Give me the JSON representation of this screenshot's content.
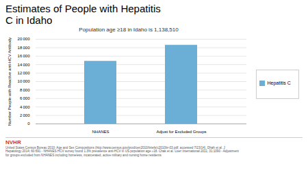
{
  "chart_data": {
    "type": "bar",
    "title": "Estimates of People with Hepatitis\nC in Idaho",
    "subtitle": "Population age ≥18 in Idaho is 1,138,510",
    "categories": [
      "NHANES",
      "Adjust for Excluded Groups"
    ],
    "series": [
      {
        "name": "Hepatitis C",
        "color": "#6baed6",
        "values": [
          14800,
          18600
        ]
      }
    ],
    "ylabel": "Number People with Reactive anti-HCV Antibody",
    "ylim": [
      0,
      20000
    ],
    "yticks": [
      0,
      {
        "value": 2000,
        "label": "2 000"
      },
      {
        "value": 4000,
        "label": "4 000"
      },
      {
        "value": 6000,
        "label": "6 000"
      },
      {
        "value": 8000,
        "label": "8 000"
      },
      {
        "value": 10000,
        "label": "10 000"
      },
      {
        "value": 12000,
        "label": "12 000"
      },
      {
        "value": 14000,
        "label": "14 000"
      },
      {
        "value": 16000,
        "label": "16 000"
      },
      {
        "value": 18000,
        "label": "18 000"
      },
      {
        "value": 20000,
        "label": "20 000"
      }
    ],
    "grid": true,
    "legend": "right",
    "annotations": [
      "United States Census Bureau 2010: Age and Sex Compositions (http://www.census.gov/prod/cen2010/briefs/c2010br-03.pdf, accessed 7/23/14). Dhah et al. J\nHepatology 2014; 60:691 - NHANES HCV survey found 1.3% prevalence anti-HCV in US population age ≥18. Chak et al. Liver International 2011; 31:1090 - Adjustment\nfor groups excluded from NHANES including homeless, incarcerated, active military and nursing home residents",
      "NVHR"
    ]
  }
}
